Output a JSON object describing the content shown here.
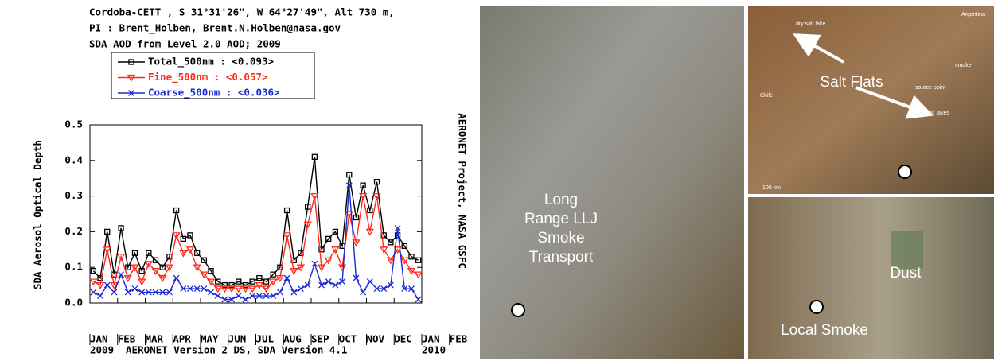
{
  "chart_data": {
    "type": "line",
    "title_lines": [
      "Cordoba-CETT , S 31°31'26\", W 64°27'49\", Alt 730 m,",
      "PI : Brent_Holben, Brent.N.Holben@nasa.gov",
      "SDA AOD from Level 2.0 AOD; 2009"
    ],
    "y_label": "SDA Aerosol Optical Depth",
    "right_label": "AERONET Project, NASA GSFC",
    "footnote": "AERONET Version 2 DS, SDA Version 4.1",
    "year_labels": [
      "2009",
      "2010"
    ],
    "x": [
      0.125,
      0.375,
      0.625,
      0.875,
      1.125,
      1.375,
      1.625,
      1.875,
      2.125,
      2.375,
      2.625,
      2.875,
      3.125,
      3.375,
      3.625,
      3.875,
      4.125,
      4.375,
      4.625,
      4.875,
      5.125,
      5.375,
      5.625,
      5.875,
      6.125,
      6.375,
      6.625,
      6.875,
      7.125,
      7.375,
      7.625,
      7.875,
      8.125,
      8.375,
      8.625,
      8.875,
      9.125,
      9.375,
      9.625,
      9.875,
      10.125,
      10.375,
      10.625,
      10.875,
      11.125,
      11.375,
      11.625,
      11.875
    ],
    "xlim": [
      0,
      12
    ],
    "xticks": [
      {
        "value": 0,
        "label": "JAN"
      },
      {
        "value": 1,
        "label": "FEB"
      },
      {
        "value": 2,
        "label": "MAR"
      },
      {
        "value": 3,
        "label": "APR"
      },
      {
        "value": 4,
        "label": "MAY"
      },
      {
        "value": 5,
        "label": "JUN"
      },
      {
        "value": 6,
        "label": "JUL"
      },
      {
        "value": 7,
        "label": "AUG"
      },
      {
        "value": 8,
        "label": "SEP"
      },
      {
        "value": 9,
        "label": "OCT"
      },
      {
        "value": 10,
        "label": "NOV"
      },
      {
        "value": 11,
        "label": "DEC"
      },
      {
        "value": 12,
        "label": "JAN"
      },
      {
        "value": 13,
        "label": "FEB"
      }
    ],
    "ylim": [
      0,
      0.5
    ],
    "yticks": [
      {
        "value": 0,
        "label": "0.0"
      },
      0.1,
      0.2,
      0.3,
      0.4,
      0.5
    ],
    "series": [
      {
        "name": "Total_500nm  : <0.093>",
        "color": "#000000",
        "marker": "square",
        "values": [
          0.09,
          0.07,
          0.2,
          0.08,
          0.21,
          0.1,
          0.14,
          0.09,
          0.14,
          0.12,
          0.1,
          0.13,
          0.26,
          0.18,
          0.19,
          0.14,
          0.12,
          0.09,
          0.06,
          0.05,
          0.05,
          0.06,
          0.05,
          0.06,
          0.07,
          0.06,
          0.08,
          0.1,
          0.26,
          0.12,
          0.14,
          0.27,
          0.41,
          0.15,
          0.18,
          0.2,
          0.16,
          0.36,
          0.24,
          0.33,
          0.26,
          0.34,
          0.19,
          0.17,
          0.19,
          0.16,
          0.13,
          0.12
        ]
      },
      {
        "name": "Fine_500nm   : <0.057>",
        "color": "#ff2a1a",
        "marker": "triangle",
        "values": [
          0.06,
          0.05,
          0.15,
          0.05,
          0.13,
          0.07,
          0.1,
          0.06,
          0.11,
          0.09,
          0.07,
          0.1,
          0.19,
          0.14,
          0.15,
          0.1,
          0.08,
          0.06,
          0.04,
          0.04,
          0.04,
          0.04,
          0.04,
          0.04,
          0.05,
          0.04,
          0.06,
          0.07,
          0.19,
          0.09,
          0.1,
          0.22,
          0.3,
          0.1,
          0.12,
          0.15,
          0.1,
          0.25,
          0.17,
          0.3,
          0.2,
          0.3,
          0.15,
          0.12,
          0.15,
          0.12,
          0.09,
          0.08
        ]
      },
      {
        "name": "Coarse_500nm  : <0.036>",
        "color": "#1a2ad4",
        "marker": "x",
        "values": [
          0.03,
          0.02,
          0.05,
          0.03,
          0.08,
          0.03,
          0.04,
          0.03,
          0.03,
          0.03,
          0.03,
          0.03,
          0.07,
          0.04,
          0.04,
          0.04,
          0.04,
          0.03,
          0.02,
          0.01,
          0.01,
          0.02,
          0.01,
          0.02,
          0.02,
          0.02,
          0.02,
          0.03,
          0.07,
          0.03,
          0.04,
          0.05,
          0.11,
          0.05,
          0.06,
          0.05,
          0.06,
          0.33,
          0.07,
          0.03,
          0.06,
          0.04,
          0.04,
          0.05,
          0.21,
          0.04,
          0.04,
          0.01
        ]
      }
    ]
  },
  "images": [
    {
      "caption_lines": [
        "Long",
        "Range LLJ",
        "Smoke",
        "Transport"
      ]
    },
    {
      "caption": "Salt Flats",
      "small_labels": [
        "dry salt lake",
        "Argentina",
        "Chile",
        "smoke",
        "source point",
        "dry salt lakes",
        "100 km"
      ]
    },
    {
      "captions": [
        "Dust",
        "Local Smoke"
      ]
    }
  ]
}
